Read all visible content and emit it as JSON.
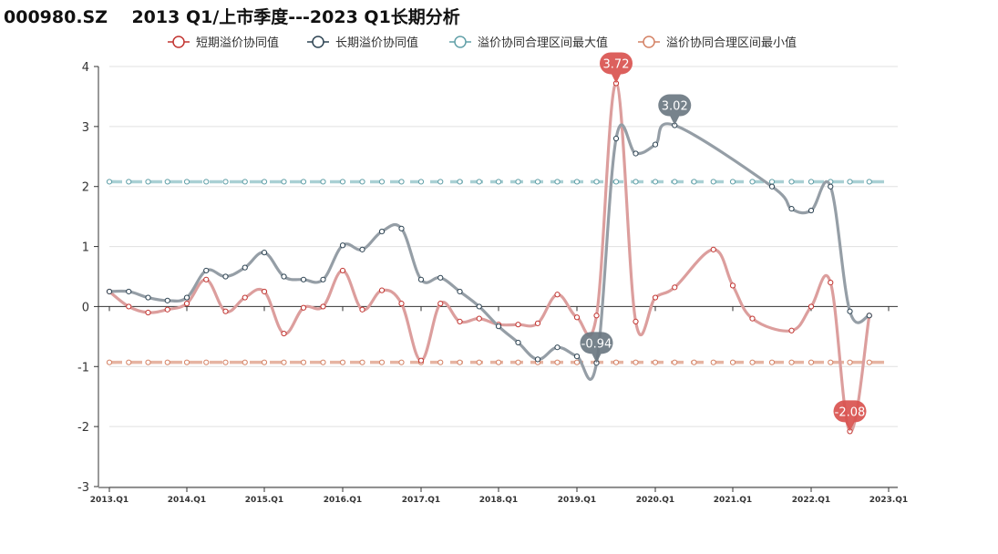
{
  "chart_data": {
    "type": "line",
    "title": "000980.SZ    2013 Q1/上市季度---2023 Q1长期分析",
    "xlabel": "",
    "ylabel": "",
    "ylim": [
      -3,
      4
    ],
    "yticks": [
      -3,
      -2,
      -1,
      0,
      1,
      2,
      3,
      4
    ],
    "grid": "horizontal",
    "legend_position": "top",
    "x_tick_labels": [
      "2013.Q1",
      "2014.Q1",
      "2015.Q1",
      "2016.Q1",
      "2017.Q1",
      "2018.Q1",
      "2019.Q1",
      "2020.Q1",
      "2021.Q1",
      "2022.Q1",
      "2023.Q1"
    ],
    "series": [
      {
        "name": "短期溢价协同值",
        "color": "#c23531",
        "line_color": "#dc9e9d",
        "values": [
          0.25,
          0.0,
          -0.1,
          -0.05,
          0.05,
          0.45,
          -0.08,
          0.15,
          0.25,
          -0.45,
          -0.02,
          0.0,
          0.6,
          -0.05,
          0.27,
          0.05,
          -0.9,
          0.05,
          -0.25,
          -0.2,
          -0.3,
          -0.3,
          -0.28,
          0.2,
          -0.18,
          -0.15,
          3.72,
          -0.25,
          0.15,
          0.32,
          null,
          0.95,
          0.35,
          -0.2,
          null,
          -0.4,
          0.0,
          0.4,
          -2.08,
          -0.15
        ],
        "labels": [
          {
            "index": 26,
            "text": "3.72"
          },
          {
            "index": 38,
            "text": "-2.08"
          }
        ]
      },
      {
        "name": "长期溢价协同值",
        "color": "#2f4554",
        "line_color": "#959ea6",
        "values": [
          0.25,
          0.25,
          0.15,
          0.1,
          0.15,
          0.6,
          0.5,
          0.65,
          0.9,
          0.5,
          0.45,
          0.45,
          1.02,
          0.95,
          1.25,
          1.3,
          0.45,
          0.48,
          0.25,
          0.0,
          -0.33,
          -0.6,
          -0.88,
          -0.68,
          -0.83,
          -0.94,
          2.8,
          2.55,
          2.7,
          3.02,
          null,
          null,
          null,
          null,
          2.0,
          1.63,
          1.6,
          2.0,
          -0.08,
          -0.15
        ],
        "labels": [
          {
            "index": 25,
            "text": "-0.94"
          },
          {
            "index": 29,
            "text": "3.02"
          }
        ]
      },
      {
        "name": "溢价协同合理区间最大值",
        "color": "#61a0a8",
        "line_color": "#a9d0d4",
        "constant": 2.08
      },
      {
        "name": "溢价协同合理区间最小值",
        "color": "#d48265",
        "line_color": "#e6b4a2",
        "constant": -0.93
      }
    ]
  }
}
